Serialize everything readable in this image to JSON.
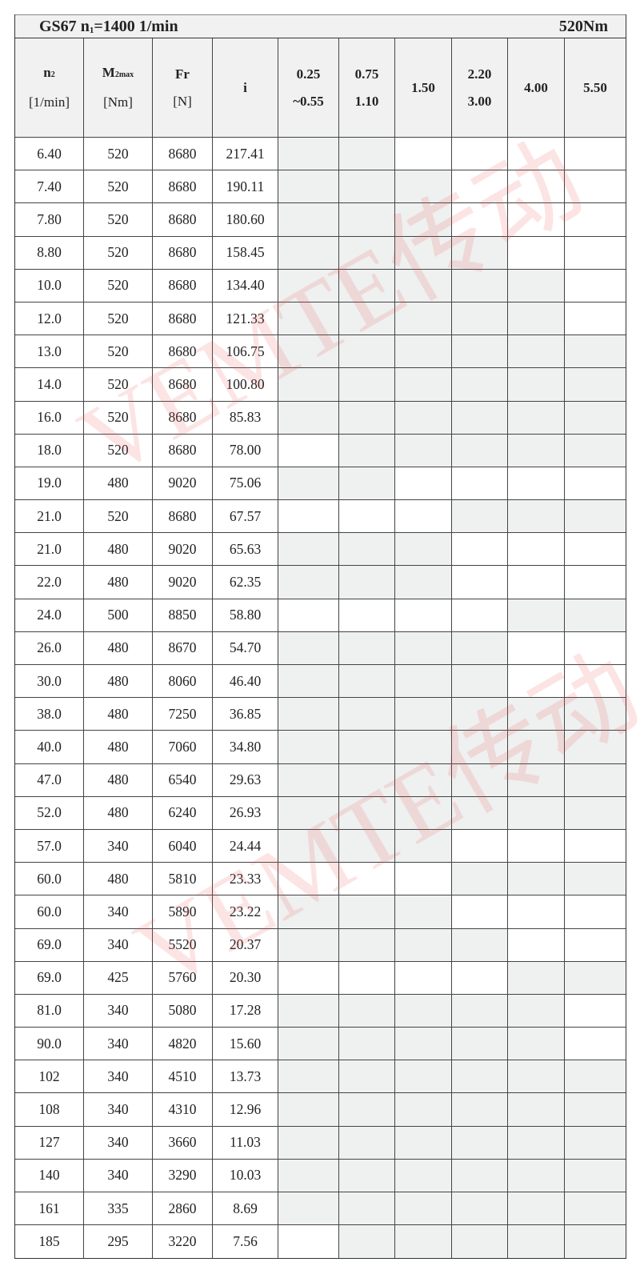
{
  "title": {
    "model": "GS67",
    "n1_label": "n",
    "n1_sub": "1",
    "n1_value": "=1400 1/min",
    "torque": "520Nm"
  },
  "headers": {
    "n2": {
      "main": "n",
      "sub": "2",
      "unit": "[1/min]"
    },
    "m2max": {
      "main": "M",
      "sub": "2max",
      "unit": "[Nm]"
    },
    "fr": {
      "main": "Fr",
      "unit": "[N]"
    },
    "i": {
      "main": "i"
    },
    "power": [
      {
        "line1": "0.25",
        "line2": "~0.55"
      },
      {
        "line1": "0.75",
        "line2": "1.10"
      },
      {
        "line1": "1.50",
        "line2": ""
      },
      {
        "line1": "2.20",
        "line2": "3.00"
      },
      {
        "line1": "4.00",
        "line2": ""
      },
      {
        "line1": "5.50",
        "line2": ""
      }
    ]
  },
  "shade_color": "#eff0f0",
  "watermark": "VEMTE传动",
  "rows": [
    {
      "n2": "6.40",
      "m2": "520",
      "fr": "8680",
      "i": "217.41",
      "shade": [
        1,
        1,
        0,
        0,
        0,
        0
      ]
    },
    {
      "n2": "7.40",
      "m2": "520",
      "fr": "8680",
      "i": "190.11",
      "shade": [
        1,
        1,
        1,
        0,
        0,
        0
      ]
    },
    {
      "n2": "7.80",
      "m2": "520",
      "fr": "8680",
      "i": "180.60",
      "shade": [
        1,
        1,
        1,
        0,
        0,
        0
      ]
    },
    {
      "n2": "8.80",
      "m2": "520",
      "fr": "8680",
      "i": "158.45",
      "shade": [
        1,
        1,
        1,
        1,
        0,
        0
      ]
    },
    {
      "n2": "10.0",
      "m2": "520",
      "fr": "8680",
      "i": "134.40",
      "shade": [
        1,
        1,
        1,
        1,
        1,
        0
      ]
    },
    {
      "n2": "12.0",
      "m2": "520",
      "fr": "8680",
      "i": "121.33",
      "shade": [
        1,
        1,
        1,
        1,
        1,
        0
      ]
    },
    {
      "n2": "13.0",
      "m2": "520",
      "fr": "8680",
      "i": "106.75",
      "shade": [
        1,
        1,
        1,
        1,
        1,
        1
      ]
    },
    {
      "n2": "14.0",
      "m2": "520",
      "fr": "8680",
      "i": "100.80",
      "shade": [
        1,
        1,
        1,
        1,
        1,
        1
      ]
    },
    {
      "n2": "16.0",
      "m2": "520",
      "fr": "8680",
      "i": "85.83",
      "shade": [
        1,
        1,
        1,
        1,
        1,
        1
      ]
    },
    {
      "n2": "18.0",
      "m2": "520",
      "fr": "8680",
      "i": "78.00",
      "shade": [
        0,
        1,
        1,
        1,
        1,
        1
      ]
    },
    {
      "n2": "19.0",
      "m2": "480",
      "fr": "9020",
      "i": "75.06",
      "shade": [
        1,
        1,
        0,
        0,
        0,
        0
      ]
    },
    {
      "n2": "21.0",
      "m2": "520",
      "fr": "8680",
      "i": "67.57",
      "shade": [
        0,
        0,
        0,
        1,
        1,
        1
      ]
    },
    {
      "n2": "21.0",
      "m2": "480",
      "fr": "9020",
      "i": "65.63",
      "shade": [
        1,
        1,
        1,
        0,
        0,
        0
      ]
    },
    {
      "n2": "22.0",
      "m2": "480",
      "fr": "9020",
      "i": "62.35",
      "shade": [
        1,
        1,
        1,
        0,
        0,
        0
      ]
    },
    {
      "n2": "24.0",
      "m2": "500",
      "fr": "8850",
      "i": "58.80",
      "shade": [
        0,
        0,
        0,
        0,
        1,
        1
      ]
    },
    {
      "n2": "26.0",
      "m2": "480",
      "fr": "8670",
      "i": "54.70",
      "shade": [
        1,
        1,
        1,
        1,
        0,
        0
      ]
    },
    {
      "n2": "30.0",
      "m2": "480",
      "fr": "8060",
      "i": "46.40",
      "shade": [
        1,
        1,
        1,
        1,
        0,
        0
      ]
    },
    {
      "n2": "38.0",
      "m2": "480",
      "fr": "7250",
      "i": "36.85",
      "shade": [
        1,
        1,
        1,
        1,
        1,
        1
      ]
    },
    {
      "n2": "40.0",
      "m2": "480",
      "fr": "7060",
      "i": "34.80",
      "shade": [
        1,
        1,
        1,
        1,
        1,
        1
      ]
    },
    {
      "n2": "47.0",
      "m2": "480",
      "fr": "6540",
      "i": "29.63",
      "shade": [
        1,
        1,
        1,
        1,
        1,
        1
      ]
    },
    {
      "n2": "52.0",
      "m2": "480",
      "fr": "6240",
      "i": "26.93",
      "shade": [
        1,
        1,
        1,
        1,
        1,
        1
      ]
    },
    {
      "n2": "57.0",
      "m2": "340",
      "fr": "6040",
      "i": "24.44",
      "shade": [
        1,
        1,
        1,
        0,
        0,
        0
      ]
    },
    {
      "n2": "60.0",
      "m2": "480",
      "fr": "5810",
      "i": "23.33",
      "shade": [
        0,
        0,
        0,
        1,
        1,
        1
      ]
    },
    {
      "n2": "60.0",
      "m2": "340",
      "fr": "5890",
      "i": "23.22",
      "shade": [
        1,
        1,
        1,
        0,
        0,
        0
      ]
    },
    {
      "n2": "69.0",
      "m2": "340",
      "fr": "5520",
      "i": "20.37",
      "shade": [
        1,
        1,
        1,
        1,
        0,
        0
      ]
    },
    {
      "n2": "69.0",
      "m2": "425",
      "fr": "5760",
      "i": "20.30",
      "shade": [
        0,
        0,
        0,
        0,
        1,
        1
      ]
    },
    {
      "n2": "81.0",
      "m2": "340",
      "fr": "5080",
      "i": "17.28",
      "shade": [
        1,
        1,
        1,
        1,
        1,
        0
      ]
    },
    {
      "n2": "90.0",
      "m2": "340",
      "fr": "4820",
      "i": "15.60",
      "shade": [
        1,
        1,
        1,
        1,
        1,
        0
      ]
    },
    {
      "n2": "102",
      "m2": "340",
      "fr": "4510",
      "i": "13.73",
      "shade": [
        1,
        1,
        1,
        1,
        1,
        1
      ]
    },
    {
      "n2": "108",
      "m2": "340",
      "fr": "4310",
      "i": "12.96",
      "shade": [
        1,
        1,
        1,
        1,
        1,
        1
      ]
    },
    {
      "n2": "127",
      "m2": "340",
      "fr": "3660",
      "i": "11.03",
      "shade": [
        1,
        1,
        1,
        1,
        1,
        1
      ]
    },
    {
      "n2": "140",
      "m2": "340",
      "fr": "3290",
      "i": "10.03",
      "shade": [
        1,
        1,
        1,
        1,
        1,
        1
      ]
    },
    {
      "n2": "161",
      "m2": "335",
      "fr": "2860",
      "i": "8.69",
      "shade": [
        1,
        1,
        1,
        1,
        1,
        1
      ]
    },
    {
      "n2": "185",
      "m2": "295",
      "fr": "3220",
      "i": "7.56",
      "shade": [
        0,
        1,
        1,
        1,
        1,
        1
      ]
    }
  ]
}
